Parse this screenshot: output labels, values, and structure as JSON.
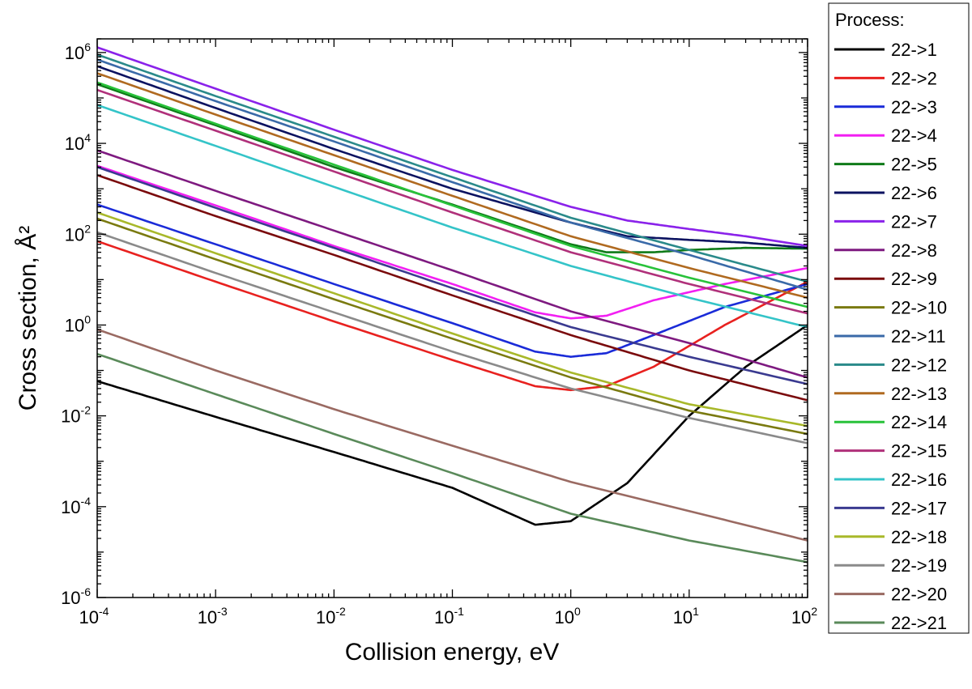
{
  "chart_data": {
    "type": "line",
    "xlabel": "Collision energy, eV",
    "ylabel": "Cross section, Å²",
    "x_scale": "log",
    "y_scale": "log",
    "xlim": [
      0.0001,
      100
    ],
    "ylim": [
      1e-06,
      2000000
    ],
    "x_ticks": [
      {
        "base": "10",
        "exp": "-4",
        "value": 0.0001
      },
      {
        "base": "10",
        "exp": "-3",
        "value": 0.001
      },
      {
        "base": "10",
        "exp": "-2",
        "value": 0.01
      },
      {
        "base": "10",
        "exp": "-1",
        "value": 0.1
      },
      {
        "base": "10",
        "exp": "0",
        "value": 1
      },
      {
        "base": "10",
        "exp": "1",
        "value": 10
      },
      {
        "base": "10",
        "exp": "2",
        "value": 100
      }
    ],
    "y_ticks": [
      {
        "base": "10",
        "exp": "-6",
        "value": 1e-06
      },
      {
        "base": "10",
        "exp": "-4",
        "value": 0.0001
      },
      {
        "base": "10",
        "exp": "-2",
        "value": 0.01
      },
      {
        "base": "10",
        "exp": "0",
        "value": 1
      },
      {
        "base": "10",
        "exp": "2",
        "value": 100
      },
      {
        "base": "10",
        "exp": "4",
        "value": 10000
      },
      {
        "base": "10",
        "exp": "6",
        "value": 1000000
      }
    ],
    "grid": false,
    "legend": {
      "title": "Process:",
      "placement": "right-outside"
    },
    "series": [
      {
        "name": "22->1",
        "color": "#000000",
        "x": [
          0.0001,
          0.001,
          0.01,
          0.1,
          0.5,
          1,
          3,
          10,
          30,
          100
        ],
        "y": [
          0.058,
          0.0095,
          0.0016,
          0.00026,
          4e-05,
          4.8e-05,
          0.00033,
          0.01,
          0.12,
          1.0
        ]
      },
      {
        "name": "22->2",
        "color": "#e8211f",
        "x": [
          0.0001,
          0.001,
          0.01,
          0.1,
          0.5,
          1,
          2,
          5,
          20,
          100
        ],
        "y": [
          70,
          9,
          1.2,
          0.17,
          0.045,
          0.037,
          0.045,
          0.12,
          1.0,
          9
        ]
      },
      {
        "name": "22->3",
        "color": "#1a2bd8",
        "x": [
          0.0001,
          0.001,
          0.01,
          0.1,
          0.5,
          1,
          2,
          5,
          20,
          100
        ],
        "y": [
          450,
          60,
          8,
          1.1,
          0.26,
          0.2,
          0.24,
          0.6,
          2.5,
          8
        ]
      },
      {
        "name": "22->4",
        "color": "#f21ff2",
        "x": [
          0.0001,
          0.001,
          0.01,
          0.1,
          0.5,
          1,
          2,
          5,
          20,
          100
        ],
        "y": [
          3200,
          430,
          55,
          8,
          1.9,
          1.4,
          1.6,
          3.5,
          8,
          18
        ]
      },
      {
        "name": "22->5",
        "color": "#0e7a18",
        "x": [
          0.0001,
          0.001,
          0.01,
          0.1,
          1,
          2,
          5,
          10,
          30,
          100
        ],
        "y": [
          200000,
          25000,
          3000,
          450,
          60,
          40,
          40,
          45,
          50,
          48
        ]
      },
      {
        "name": "22->6",
        "color": "#0b1260",
        "x": [
          0.0001,
          0.001,
          0.01,
          0.1,
          1,
          3,
          10,
          30,
          100
        ],
        "y": [
          500000,
          60000,
          7500,
          1000,
          180,
          90,
          75,
          65,
          50
        ]
      },
      {
        "name": "22->7",
        "color": "#8a22ea",
        "x": [
          0.0001,
          0.001,
          0.01,
          0.1,
          1,
          3,
          10,
          30,
          100
        ],
        "y": [
          1300000,
          160000,
          20000,
          2600,
          400,
          200,
          130,
          90,
          55
        ]
      },
      {
        "name": "22->8",
        "color": "#7e1a80",
        "x": [
          0.0001,
          0.001,
          0.01,
          0.1,
          1,
          10,
          100
        ],
        "y": [
          7000,
          900,
          120,
          16,
          2.0,
          0.4,
          0.07
        ]
      },
      {
        "name": "22->9",
        "color": "#7a0a0c",
        "x": [
          0.0001,
          0.001,
          0.01,
          0.1,
          1,
          10,
          100
        ],
        "y": [
          2000,
          250,
          35,
          4.5,
          0.6,
          0.1,
          0.022
        ]
      },
      {
        "name": "22->10",
        "color": "#7a7a10",
        "x": [
          0.0001,
          0.001,
          0.01,
          0.1,
          1,
          10,
          100
        ],
        "y": [
          220,
          28,
          3.7,
          0.5,
          0.07,
          0.013,
          0.004
        ]
      },
      {
        "name": "22->11",
        "color": "#3a6aa8",
        "x": [
          0.0001,
          0.001,
          0.01,
          0.1,
          1,
          10,
          100
        ],
        "y": [
          700000,
          85000,
          11000,
          1400,
          180,
          35,
          6
        ]
      },
      {
        "name": "22->12",
        "color": "#2a8a8a",
        "x": [
          0.0001,
          0.001,
          0.01,
          0.1,
          1,
          10,
          100
        ],
        "y": [
          900000,
          110000,
          14000,
          1800,
          230,
          45,
          9
        ]
      },
      {
        "name": "22->13",
        "color": "#b06a20",
        "x": [
          0.0001,
          0.001,
          0.01,
          0.1,
          1,
          10,
          100
        ],
        "y": [
          350000,
          43000,
          5500,
          700,
          90,
          18,
          4
        ]
      },
      {
        "name": "22->14",
        "color": "#28c23a",
        "x": [
          0.0001,
          0.001,
          0.01,
          0.1,
          1,
          10,
          100
        ],
        "y": [
          220000,
          27000,
          3400,
          430,
          55,
          11,
          2.5
        ]
      },
      {
        "name": "22->15",
        "color": "#b0307a",
        "x": [
          0.0001,
          0.001,
          0.01,
          0.1,
          1,
          10,
          100
        ],
        "y": [
          150000,
          19000,
          2400,
          300,
          40,
          8,
          1.8
        ]
      },
      {
        "name": "22->16",
        "color": "#34c4c8",
        "x": [
          0.0001,
          0.001,
          0.01,
          0.1,
          1,
          10,
          100
        ],
        "y": [
          70000,
          8800,
          1100,
          140,
          20,
          4,
          0.9
        ]
      },
      {
        "name": "22->17",
        "color": "#3a3a90",
        "x": [
          0.0001,
          0.001,
          0.01,
          0.1,
          1,
          10,
          100
        ],
        "y": [
          3000,
          380,
          50,
          6.5,
          0.9,
          0.2,
          0.05
        ]
      },
      {
        "name": "22->18",
        "color": "#a8b82a",
        "x": [
          0.0001,
          0.001,
          0.01,
          0.1,
          1,
          10,
          100
        ],
        "y": [
          300,
          38,
          5,
          0.65,
          0.09,
          0.018,
          0.006
        ]
      },
      {
        "name": "22->19",
        "color": "#8a8a8a",
        "x": [
          0.0001,
          0.001,
          0.01,
          0.1,
          1,
          10,
          100
        ],
        "y": [
          110,
          14,
          1.9,
          0.26,
          0.04,
          0.009,
          0.0025
        ]
      },
      {
        "name": "22->20",
        "color": "#9a6a62",
        "x": [
          0.0001,
          0.001,
          0.01,
          0.1,
          1,
          10,
          100
        ],
        "y": [
          0.8,
          0.1,
          0.014,
          0.0022,
          0.00035,
          8e-05,
          1.8e-05
        ]
      },
      {
        "name": "22->21",
        "color": "#5a8a5a",
        "x": [
          0.0001,
          0.001,
          0.01,
          0.1,
          1,
          10,
          100
        ],
        "y": [
          0.23,
          0.03,
          0.004,
          0.00055,
          7e-05,
          1.8e-05,
          6e-06
        ]
      }
    ]
  }
}
